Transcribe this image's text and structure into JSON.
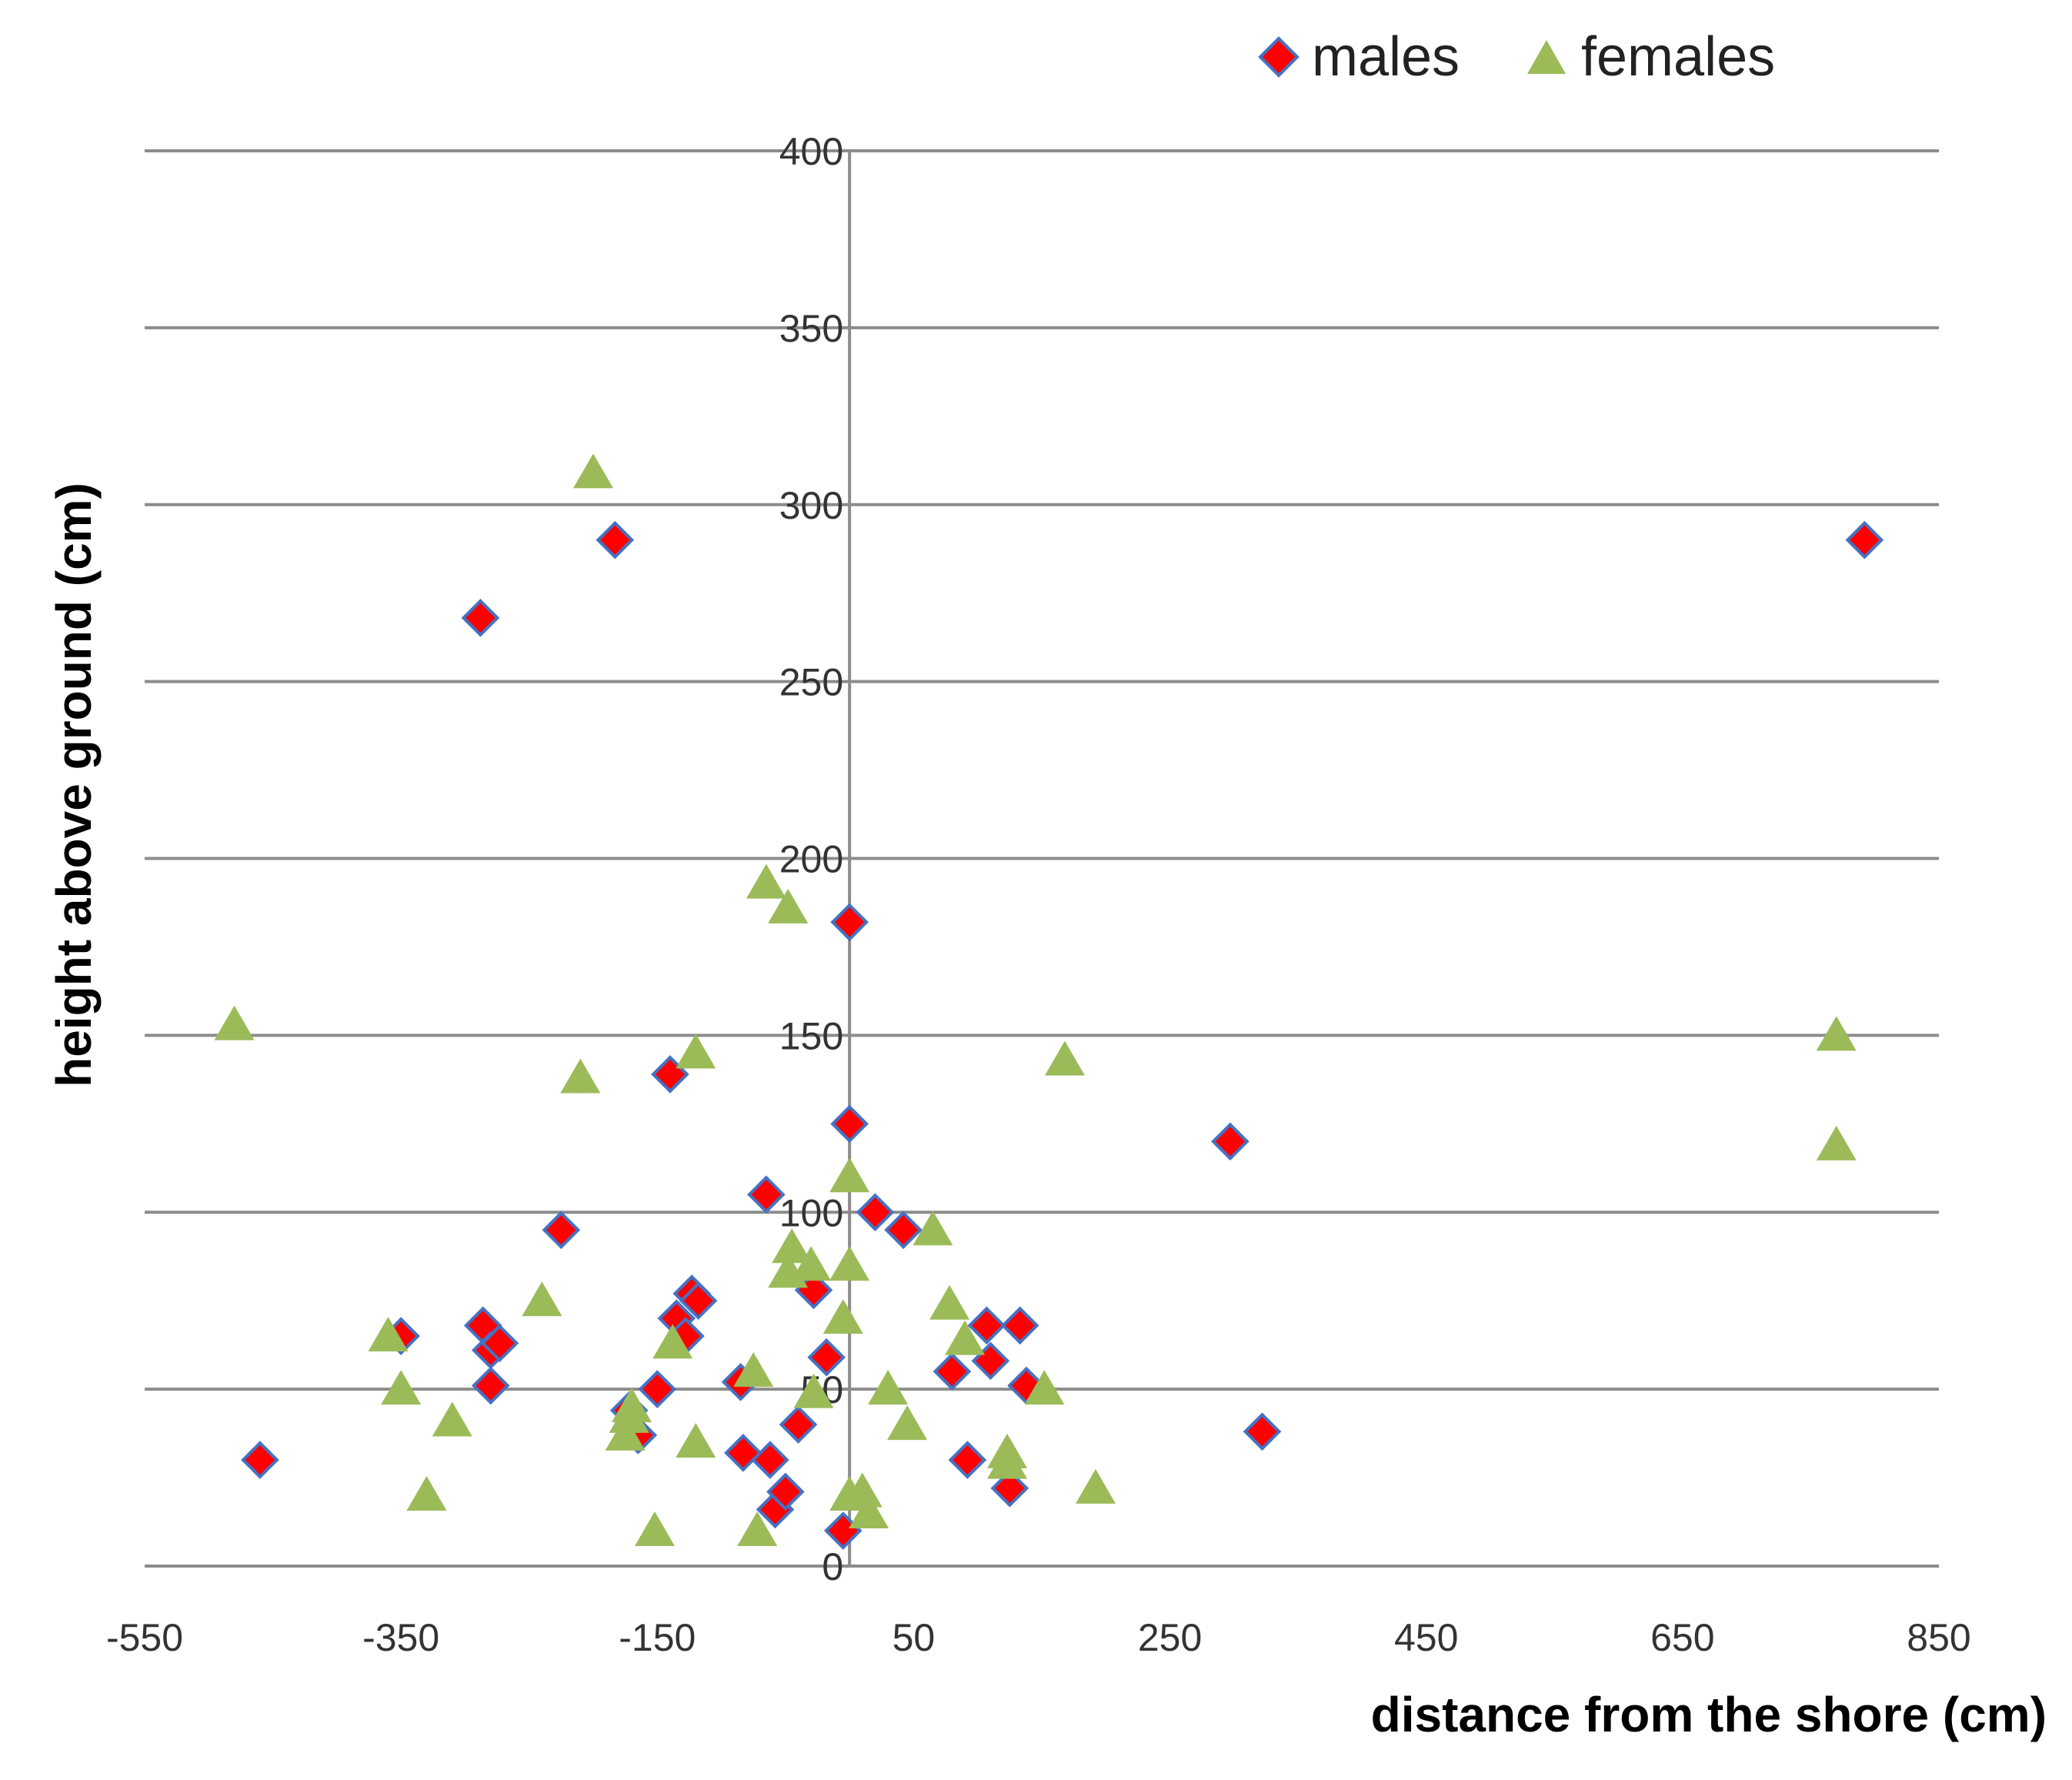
{
  "chart_data": {
    "type": "scatter",
    "title": "",
    "xlabel": "distance from the shore (cm)",
    "ylabel": "height above ground (cm)",
    "xlim": [
      -550,
      850
    ],
    "ylim": [
      0,
      400
    ],
    "xticks": [
      -550,
      -350,
      -150,
      50,
      250,
      450,
      650,
      850
    ],
    "yticks": [
      0,
      50,
      100,
      150,
      200,
      250,
      300,
      350,
      400
    ],
    "grid": "horizontal",
    "legend_position": "top-right",
    "series": [
      {
        "name": "males",
        "marker": "diamond",
        "color": "#ff0000",
        "edge_color": "#4472c4",
        "points": [
          [
            -460,
            30
          ],
          [
            -288,
            268
          ],
          [
            -183,
            290
          ],
          [
            792,
            290
          ],
          [
            -225,
            95
          ],
          [
            -140,
            139
          ],
          [
            0,
            182
          ],
          [
            0,
            125
          ],
          [
            297,
            120
          ],
          [
            -350,
            65
          ],
          [
            -286,
            68
          ],
          [
            -280,
            61
          ],
          [
            -273,
            63
          ],
          [
            -280,
            51
          ],
          [
            -172,
            44
          ],
          [
            -165,
            37
          ],
          [
            -150,
            50
          ],
          [
            -135,
            70
          ],
          [
            -123,
            77
          ],
          [
            -118,
            75
          ],
          [
            -128,
            65
          ],
          [
            -85,
            52
          ],
          [
            -83,
            32
          ],
          [
            -65,
            105
          ],
          [
            -62,
            30
          ],
          [
            -58,
            16
          ],
          [
            -50,
            21
          ],
          [
            -40,
            40
          ],
          [
            -28,
            78
          ],
          [
            -18,
            59
          ],
          [
            20,
            100
          ],
          [
            42,
            95
          ],
          [
            -5,
            10
          ],
          [
            80,
            55
          ],
          [
            92,
            30
          ],
          [
            107,
            68
          ],
          [
            110,
            58
          ],
          [
            133,
            68
          ],
          [
            138,
            51
          ],
          [
            125,
            22
          ],
          [
            322,
            38
          ]
        ]
      },
      {
        "name": "females",
        "marker": "triangle",
        "color": "#9bbb59",
        "edge_color": "#9bbb59",
        "points": [
          [
            -480,
            153
          ],
          [
            -200,
            309
          ],
          [
            -210,
            138
          ],
          [
            -120,
            145
          ],
          [
            -65,
            193
          ],
          [
            -48,
            186
          ],
          [
            168,
            143
          ],
          [
            770,
            150
          ],
          [
            770,
            119
          ],
          [
            -360,
            65
          ],
          [
            -350,
            50
          ],
          [
            -310,
            41
          ],
          [
            -330,
            20
          ],
          [
            -240,
            75
          ],
          [
            -175,
            37
          ],
          [
            -172,
            42
          ],
          [
            -170,
            45
          ],
          [
            -152,
            10
          ],
          [
            -138,
            63
          ],
          [
            -120,
            35
          ],
          [
            -75,
            55
          ],
          [
            -72,
            10
          ],
          [
            -45,
            90
          ],
          [
            -48,
            83
          ],
          [
            -30,
            85
          ],
          [
            -28,
            49
          ],
          [
            -5,
            70
          ],
          [
            0,
            110
          ],
          [
            0,
            85
          ],
          [
            0,
            20
          ],
          [
            10,
            21
          ],
          [
            15,
            15
          ],
          [
            30,
            50
          ],
          [
            45,
            40
          ],
          [
            65,
            95
          ],
          [
            78,
            74
          ],
          [
            90,
            64
          ],
          [
            123,
            32
          ],
          [
            123,
            29
          ],
          [
            152,
            50
          ],
          [
            192,
            22
          ]
        ]
      }
    ]
  }
}
